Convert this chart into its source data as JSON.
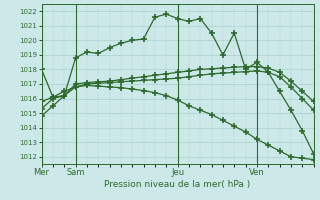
{
  "bg_color": "#cce8e8",
  "line_color": "#2d6a2d",
  "title": "Pression niveau de la mer( hPa )",
  "ylim": [
    1011.5,
    1022.5
  ],
  "yticks": [
    1012,
    1013,
    1014,
    1015,
    1016,
    1017,
    1018,
    1019,
    1020,
    1021,
    1022
  ],
  "day_labels": [
    "Mer",
    "Sam",
    "Jeu",
    "Ven"
  ],
  "day_positions": [
    0,
    3,
    12,
    19
  ],
  "n_points": 25,
  "series1": [
    1014.8,
    1015.5,
    1016.2,
    1018.8,
    1019.2,
    1019.1,
    1019.5,
    1019.8,
    1020.0,
    1020.1,
    1021.6,
    1021.8,
    1021.5,
    1021.3,
    1021.5,
    1020.5,
    1019.0,
    1020.5,
    1018.0,
    1018.5,
    1017.8,
    1016.5,
    1015.2,
    1013.8,
    1012.2
  ],
  "series2": [
    1018.0,
    1016.1,
    1016.2,
    1017.0,
    1017.1,
    1017.15,
    1017.2,
    1017.3,
    1017.4,
    1017.5,
    1017.6,
    1017.7,
    1017.8,
    1017.9,
    1018.0,
    1018.05,
    1018.1,
    1018.15,
    1018.2,
    1018.2,
    1018.1,
    1017.8,
    1017.2,
    1016.5,
    1015.8
  ],
  "series3": [
    1015.8,
    1016.1,
    1016.5,
    1016.8,
    1017.0,
    1017.05,
    1017.1,
    1017.15,
    1017.2,
    1017.25,
    1017.3,
    1017.35,
    1017.4,
    1017.5,
    1017.6,
    1017.7,
    1017.75,
    1017.8,
    1017.85,
    1017.9,
    1017.8,
    1017.5,
    1016.8,
    1016.0,
    1015.2
  ],
  "series4": [
    1015.3,
    1016.0,
    1016.2,
    1016.8,
    1016.9,
    1016.85,
    1016.8,
    1016.75,
    1016.65,
    1016.55,
    1016.4,
    1016.2,
    1015.9,
    1015.5,
    1015.2,
    1014.9,
    1014.5,
    1014.1,
    1013.7,
    1013.2,
    1012.8,
    1012.4,
    1012.0,
    1011.9,
    1011.8
  ]
}
